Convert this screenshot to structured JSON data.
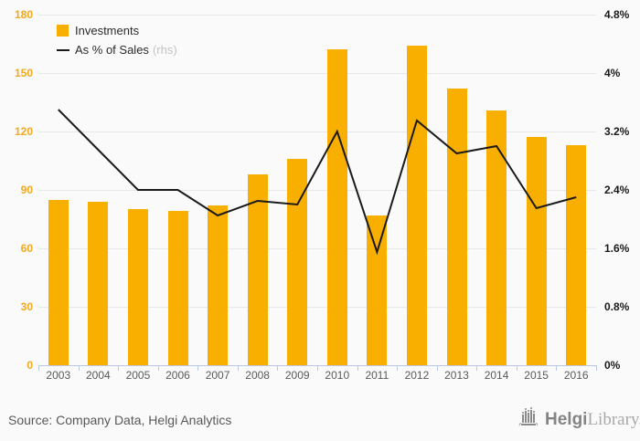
{
  "legend": {
    "investments_label": "Investments",
    "line_label": "As % of Sales",
    "line_suffix": "(rhs)"
  },
  "footer": {
    "source": "Source: Company Data, Helgi Analytics",
    "logo_text_bold": "Helgi",
    "logo_text_light": "Library."
  },
  "colors": {
    "bar": "#f9af00",
    "line": "#1a1a1a",
    "left_axis_labels": "#f5a81c",
    "right_axis_labels": "#1a1a1a",
    "year_labels": "#595959",
    "gridline": "#e7e8ec",
    "axis_line": "#bcc8e2",
    "background": "#fafafa",
    "logo_gray": "#8a8a8a"
  },
  "chart_data": {
    "type": "bar",
    "categories": [
      "2003",
      "2004",
      "2005",
      "2006",
      "2007",
      "2008",
      "2009",
      "2010",
      "2011",
      "2012",
      "2013",
      "2014",
      "2015",
      "2016"
    ],
    "series": [
      {
        "name": "Investments",
        "type": "bar",
        "axis": "left",
        "values": [
          85,
          84,
          80,
          79,
          82,
          98,
          106,
          162,
          77,
          164,
          142,
          131,
          117,
          113
        ]
      },
      {
        "name": "As % of Sales",
        "type": "line",
        "axis": "right",
        "values": [
          3.5,
          2.95,
          2.4,
          2.4,
          2.05,
          2.25,
          2.2,
          3.2,
          1.55,
          3.35,
          2.9,
          3.0,
          2.15,
          2.3
        ]
      }
    ],
    "y_left": {
      "min": 0,
      "max": 180,
      "ticks": [
        0,
        30,
        60,
        90,
        120,
        150,
        180
      ]
    },
    "y_right": {
      "min": 0,
      "max": 4.8,
      "tick_values": [
        0,
        0.8,
        1.6,
        2.4,
        3.2,
        4,
        4.8
      ],
      "tick_labels": [
        "0%",
        "0.8%",
        "1.6%",
        "2.4%",
        "3.2%",
        "4%",
        "4.8%"
      ]
    },
    "grid": true,
    "legend_position": "top-left",
    "title": ""
  }
}
